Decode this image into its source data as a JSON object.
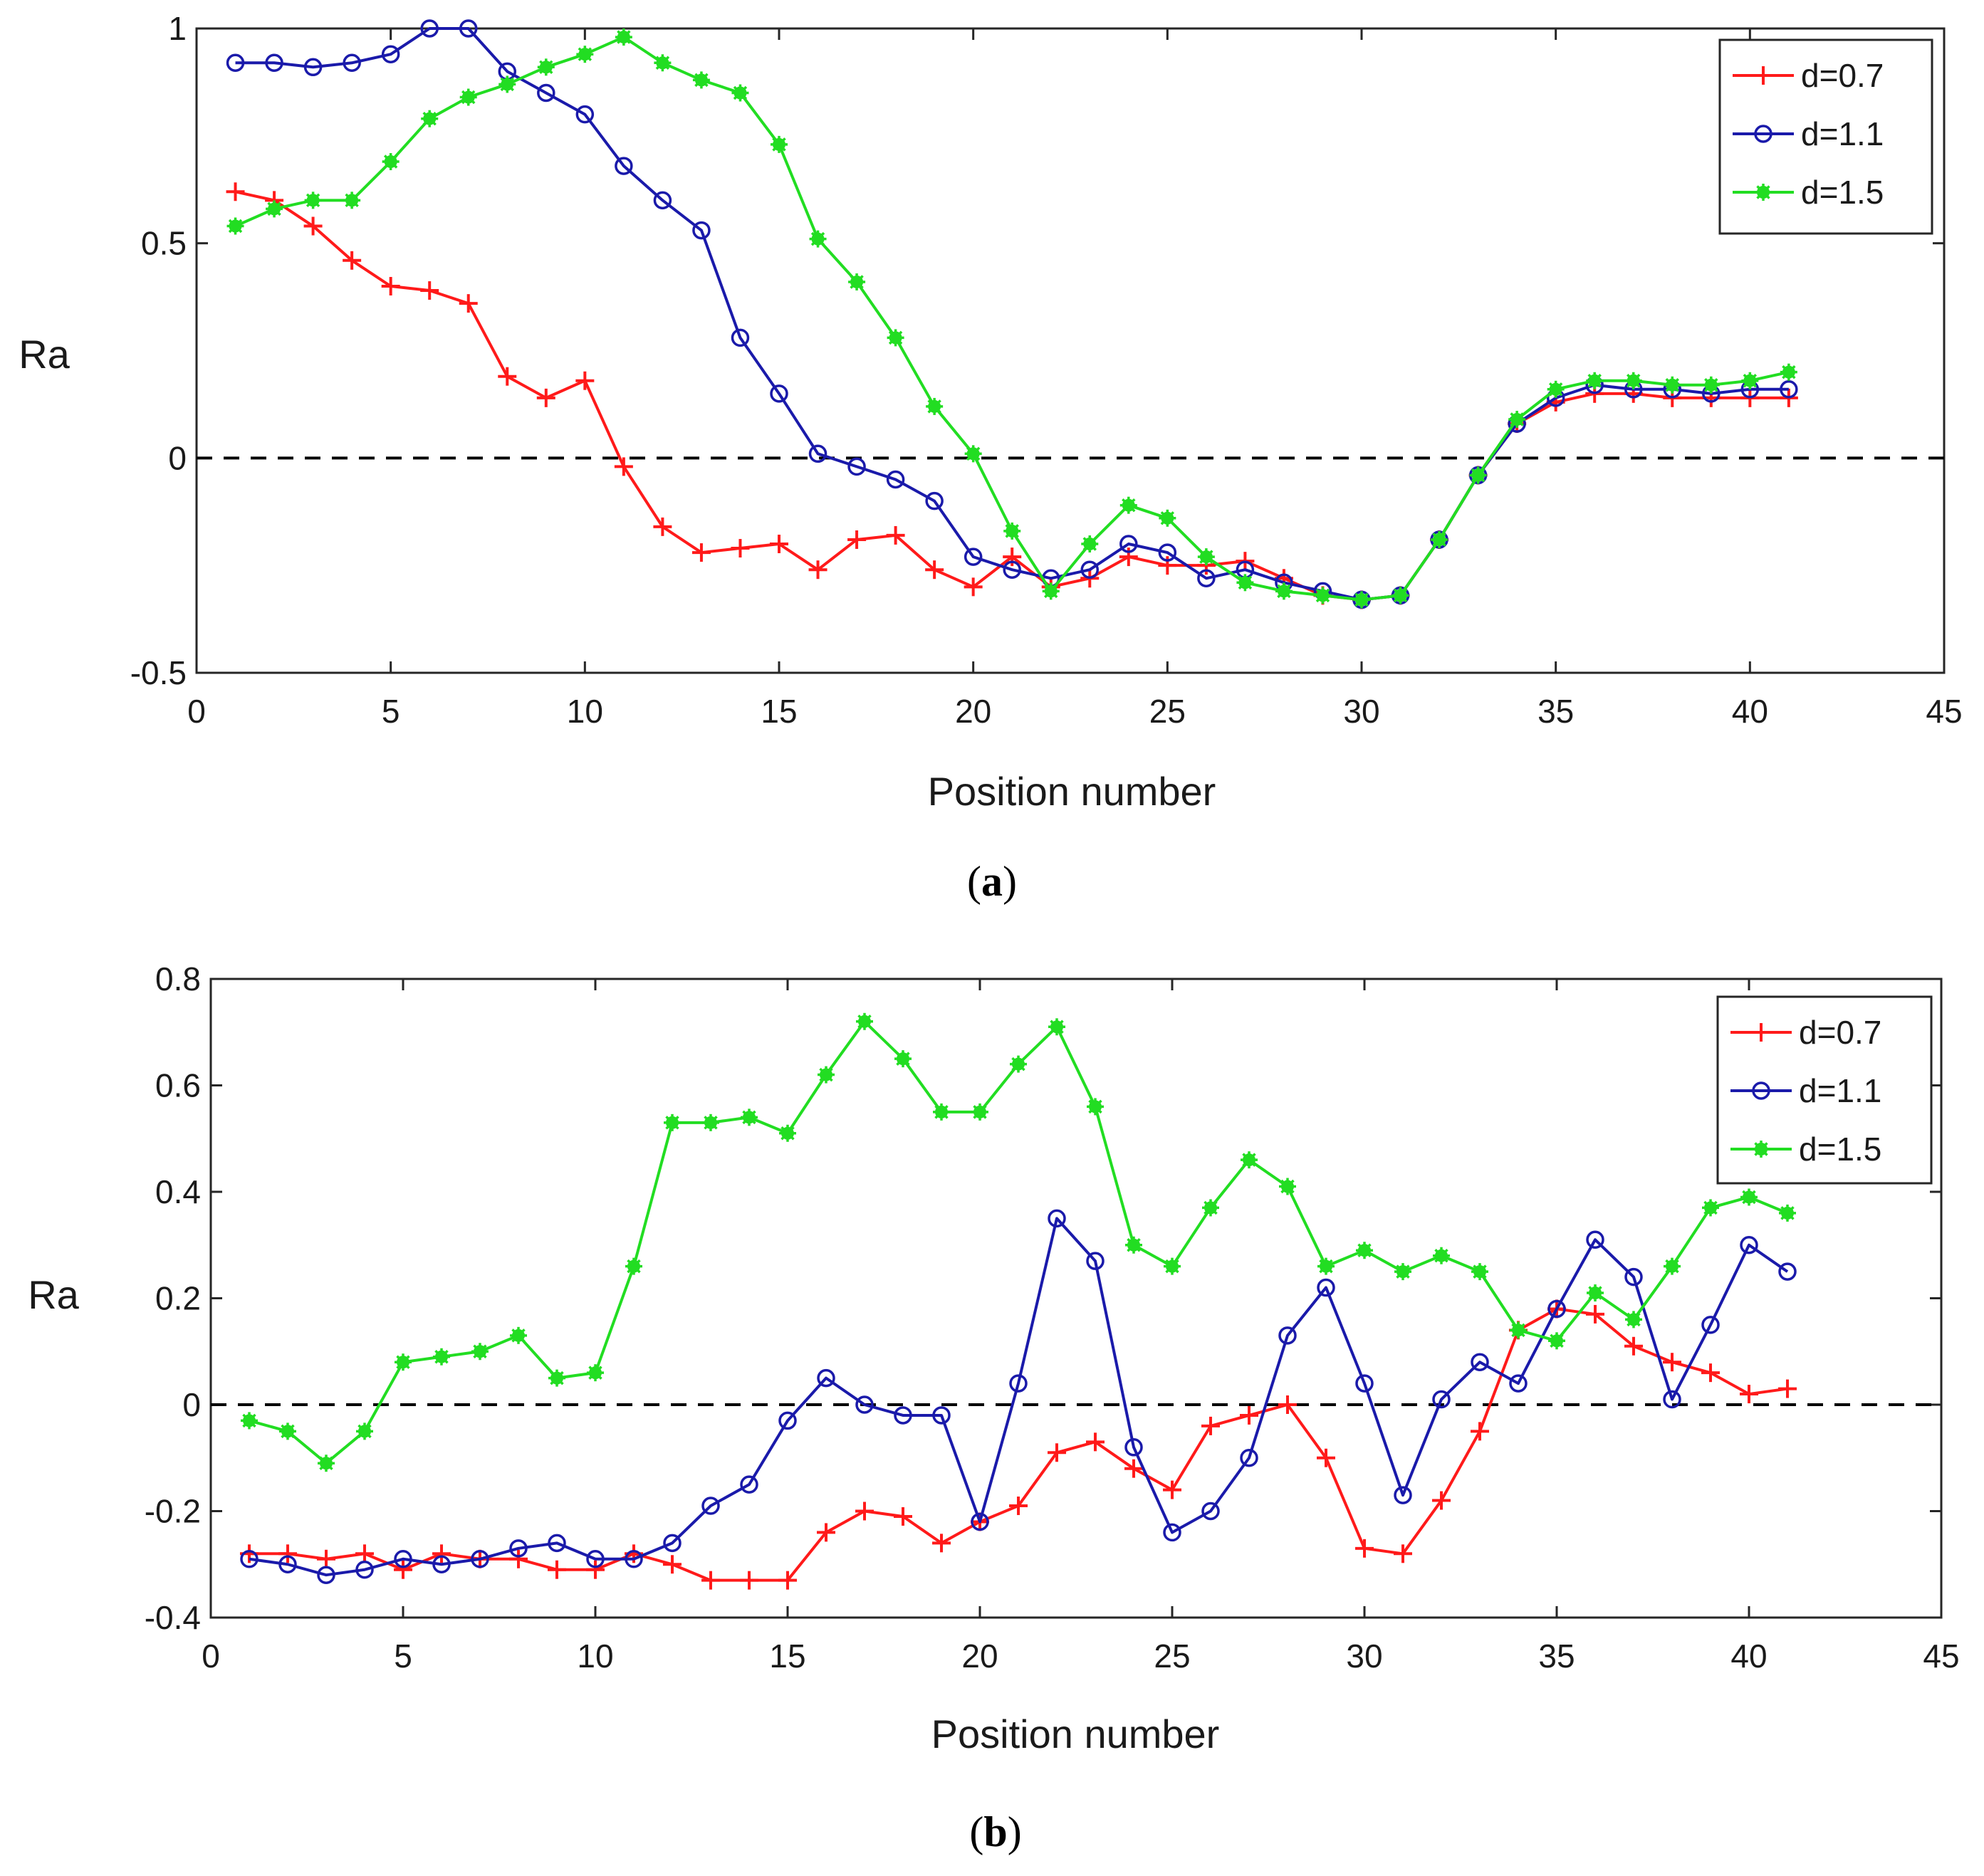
{
  "figure": {
    "panels": [
      {
        "caption": "a"
      },
      {
        "caption": "b"
      }
    ]
  },
  "chart_data": [
    {
      "type": "line",
      "panel": "a",
      "title": "",
      "xlabel": "Position number",
      "ylabel": "Ra",
      "xlim": [
        0,
        45
      ],
      "ylim": [
        -0.5,
        1
      ],
      "xticks": [
        0,
        5,
        10,
        15,
        20,
        25,
        30,
        35,
        40,
        45
      ],
      "yticks": [
        -0.5,
        0,
        0.5,
        1
      ],
      "ytick_labels": [
        "-0.5",
        "0",
        "0.5",
        "1"
      ],
      "xtick_labels": [
        "0",
        "5",
        "10",
        "15",
        "20",
        "25",
        "30",
        "35",
        "40",
        "45"
      ],
      "grid": false,
      "legend_position": "top-right",
      "reference_line": {
        "y": 0,
        "style": "dashed",
        "color": "#000000"
      },
      "x": [
        1,
        2,
        3,
        4,
        5,
        6,
        7,
        8,
        9,
        10,
        11,
        12,
        13,
        14,
        15,
        16,
        17,
        18,
        19,
        20,
        21,
        22,
        23,
        24,
        25,
        26,
        27,
        28,
        29,
        30,
        31,
        32,
        33,
        34,
        35,
        36,
        37,
        38,
        39,
        40,
        41
      ],
      "series": [
        {
          "name": "d=0.7",
          "color": "#ff1a1a",
          "marker": "plus",
          "values": [
            0.62,
            0.6,
            0.54,
            0.46,
            0.4,
            0.39,
            0.36,
            0.19,
            0.14,
            0.18,
            -0.02,
            -0.16,
            -0.22,
            -0.21,
            -0.2,
            -0.26,
            -0.19,
            -0.18,
            -0.26,
            -0.3,
            -0.23,
            -0.3,
            -0.28,
            -0.23,
            -0.25,
            -0.25,
            -0.24,
            -0.28,
            -0.32,
            -0.33,
            -0.32,
            -0.19,
            -0.04,
            0.08,
            0.13,
            0.15,
            0.15,
            0.14,
            0.14,
            0.14,
            0.14
          ]
        },
        {
          "name": "d=1.1",
          "color": "#1a1aaa",
          "marker": "circle",
          "values": [
            0.92,
            0.92,
            0.91,
            0.92,
            0.94,
            1.0,
            1.0,
            0.9,
            0.85,
            0.8,
            0.68,
            0.6,
            0.53,
            0.28,
            0.15,
            0.01,
            -0.02,
            -0.05,
            -0.1,
            -0.23,
            -0.26,
            -0.28,
            -0.26,
            -0.2,
            -0.22,
            -0.28,
            -0.26,
            -0.29,
            -0.31,
            -0.33,
            -0.32,
            -0.19,
            -0.04,
            0.08,
            0.14,
            0.17,
            0.16,
            0.16,
            0.15,
            0.16,
            0.16
          ]
        },
        {
          "name": "d=1.5",
          "color": "#22dd22",
          "marker": "asterisk",
          "values": [
            0.54,
            0.58,
            0.6,
            0.6,
            0.69,
            0.79,
            0.84,
            0.87,
            0.91,
            0.94,
            0.98,
            0.92,
            0.88,
            0.85,
            0.73,
            0.51,
            0.41,
            0.28,
            0.12,
            0.01,
            -0.17,
            -0.31,
            -0.2,
            -0.11,
            -0.14,
            -0.23,
            -0.29,
            -0.31,
            -0.32,
            -0.33,
            -0.32,
            -0.19,
            -0.04,
            0.09,
            0.16,
            0.18,
            0.18,
            0.17,
            0.17,
            0.18,
            0.2
          ]
        }
      ]
    },
    {
      "type": "line",
      "panel": "b",
      "title": "",
      "xlabel": "Position number",
      "ylabel": "Ra",
      "xlim": [
        0,
        45
      ],
      "ylim": [
        -0.4,
        0.8
      ],
      "xticks": [
        0,
        5,
        10,
        15,
        20,
        25,
        30,
        35,
        40,
        45
      ],
      "yticks": [
        -0.4,
        -0.2,
        0,
        0.2,
        0.4,
        0.6,
        0.8
      ],
      "ytick_labels": [
        "-0.4",
        "-0.2",
        "0",
        "0.2",
        "0.4",
        "0.6",
        "0.8"
      ],
      "xtick_labels": [
        "0",
        "5",
        "10",
        "15",
        "20",
        "25",
        "30",
        "35",
        "40",
        "45"
      ],
      "grid": false,
      "legend_position": "top-right",
      "reference_line": {
        "y": 0,
        "style": "dashed",
        "color": "#000000"
      },
      "x": [
        1,
        2,
        3,
        4,
        5,
        6,
        7,
        8,
        9,
        10,
        11,
        12,
        13,
        14,
        15,
        16,
        17,
        18,
        19,
        20,
        21,
        22,
        23,
        24,
        25,
        26,
        27,
        28,
        29,
        30,
        31,
        32,
        33,
        34,
        35,
        36,
        37,
        38,
        39,
        40,
        41
      ],
      "series": [
        {
          "name": "d=0.7",
          "color": "#ff1a1a",
          "marker": "plus",
          "values": [
            -0.28,
            -0.28,
            -0.29,
            -0.28,
            -0.31,
            -0.28,
            -0.29,
            -0.29,
            -0.31,
            -0.31,
            -0.28,
            -0.3,
            -0.33,
            -0.33,
            -0.33,
            -0.24,
            -0.2,
            -0.21,
            -0.26,
            -0.22,
            -0.19,
            -0.09,
            -0.07,
            -0.12,
            -0.16,
            -0.04,
            -0.02,
            0.0,
            -0.1,
            -0.27,
            -0.28,
            -0.18,
            -0.05,
            0.14,
            0.18,
            0.17,
            0.11,
            0.08,
            0.06,
            0.02,
            0.03
          ]
        },
        {
          "name": "d=1.1",
          "color": "#1a1aaa",
          "marker": "circle",
          "values": [
            -0.29,
            -0.3,
            -0.32,
            -0.31,
            -0.29,
            -0.3,
            -0.29,
            -0.27,
            -0.26,
            -0.29,
            -0.29,
            -0.26,
            -0.19,
            -0.15,
            -0.03,
            0.05,
            0.0,
            -0.02,
            -0.02,
            -0.22,
            0.04,
            0.35,
            0.27,
            -0.08,
            -0.24,
            -0.2,
            -0.1,
            0.13,
            0.22,
            0.04,
            -0.17,
            0.01,
            0.08,
            0.04,
            0.18,
            0.31,
            0.24,
            0.01,
            0.15,
            0.3,
            0.25
          ]
        },
        {
          "name": "d=1.5",
          "color": "#22dd22",
          "marker": "asterisk",
          "values": [
            -0.03,
            -0.05,
            -0.11,
            -0.05,
            0.08,
            0.09,
            0.1,
            0.13,
            0.05,
            0.06,
            0.26,
            0.53,
            0.53,
            0.54,
            0.51,
            0.62,
            0.72,
            0.65,
            0.55,
            0.55,
            0.64,
            0.71,
            0.56,
            0.3,
            0.26,
            0.37,
            0.46,
            0.41,
            0.26,
            0.29,
            0.25,
            0.28,
            0.25,
            0.14,
            0.12,
            0.21,
            0.16,
            0.26,
            0.37,
            0.39,
            0.36
          ]
        }
      ]
    }
  ]
}
